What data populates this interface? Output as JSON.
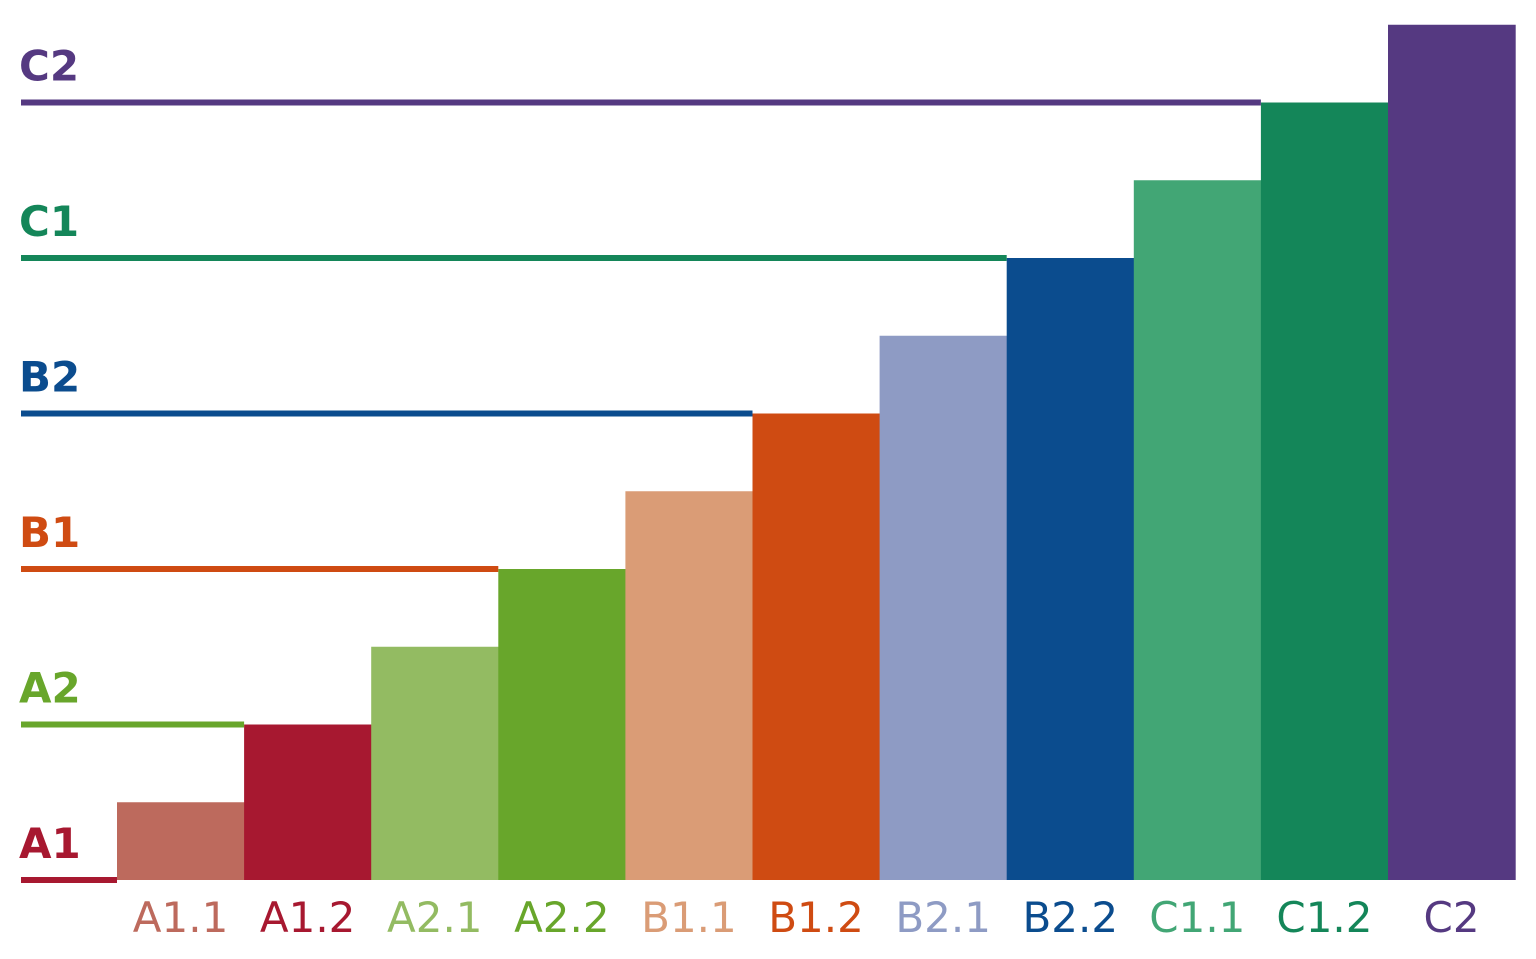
{
  "chart_data": {
    "type": "bar",
    "title": "",
    "xlabel": "",
    "ylabel": "",
    "categories": [
      "A1.1",
      "A1.2",
      "A2.1",
      "A2.2",
      "B1.1",
      "B1.2",
      "B2.1",
      "B2.2",
      "C1.1",
      "C1.2",
      "C2"
    ],
    "values": [
      0.5,
      1.0,
      1.5,
      2.0,
      2.5,
      3.0,
      3.5,
      4.0,
      4.5,
      5.0,
      5.5
    ],
    "colors": [
      "#bd6a5d",
      "#a71830",
      "#93bb62",
      "#68a62b",
      "#da9c76",
      "#cf4b12",
      "#8e9bc4",
      "#0b4c8e",
      "#42a675",
      "#148659",
      "#553981"
    ],
    "ylim": [
      0,
      5.5
    ],
    "levels": [
      {
        "label": "A1",
        "value": 0.0,
        "color": "#a71830"
      },
      {
        "label": "A2",
        "value": 1.0,
        "color": "#68a62b"
      },
      {
        "label": "B1",
        "value": 2.0,
        "color": "#cf4b12"
      },
      {
        "label": "B2",
        "value": 3.0,
        "color": "#0b4c8e"
      },
      {
        "label": "C1",
        "value": 4.0,
        "color": "#148659"
      },
      {
        "label": "C2",
        "value": 5.0,
        "color": "#553981"
      }
    ]
  }
}
